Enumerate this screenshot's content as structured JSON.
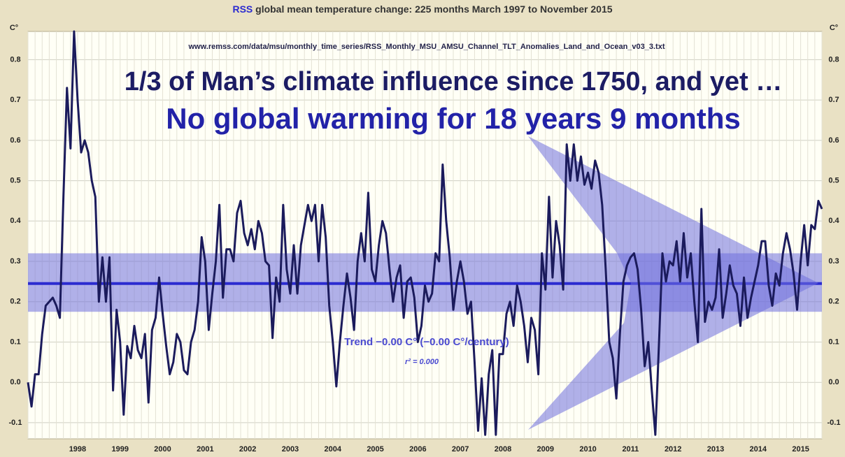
{
  "chart_data": {
    "type": "line",
    "title_prefix": "RSS",
    "title": "global mean temperature change: 225 months March 1997 to November 2015",
    "source": "www.remss.com/data/msu/monthly_time_series/RSS_Monthly_MSU_AMSU_Channel_TLT_Anomalies_Land_and_Ocean_v03_3.txt",
    "headline": "1/3 of Man’s climate influence since 1750, and yet …",
    "subheadline": "No global warming for 18 years 9 months",
    "trend_label": "Trend −0.00 C° (−0.00 C°/century)",
    "r2_label": "r² = 0.000",
    "y_label": "C°",
    "color": "#1b1b5c",
    "trend_color": "#2b2bd0",
    "band_color": "#7070dd",
    "trend": 0.245,
    "band": [
      0.175,
      0.32
    ],
    "ylim": [
      -0.14,
      0.87
    ],
    "yticks": [
      -0.1,
      {
        "value": 0,
        "label": "0.0"
      },
      0.1,
      0.2,
      0.3,
      0.4,
      0.5,
      0.6,
      0.7,
      0.8
    ],
    "grid": true,
    "categories": [
      null,
      null,
      null,
      null,
      null,
      null,
      null,
      null,
      null,
      null,
      null,
      null,
      null,
      null,
      "1998",
      null,
      null,
      null,
      null,
      null,
      null,
      null,
      null,
      null,
      null,
      null,
      "1999",
      null,
      null,
      null,
      null,
      null,
      null,
      null,
      null,
      null,
      null,
      null,
      "2000",
      null,
      null,
      null,
      null,
      null,
      null,
      null,
      null,
      null,
      null,
      null,
      "2001",
      null,
      null,
      null,
      null,
      null,
      null,
      null,
      null,
      null,
      null,
      null,
      "2002",
      null,
      null,
      null,
      null,
      null,
      null,
      null,
      null,
      null,
      null,
      null,
      "2003",
      null,
      null,
      null,
      null,
      null,
      null,
      null,
      null,
      null,
      null,
      null,
      "2004",
      null,
      null,
      null,
      null,
      null,
      null,
      null,
      null,
      null,
      null,
      null,
      "2005",
      null,
      null,
      null,
      null,
      null,
      null,
      null,
      null,
      null,
      null,
      null,
      "2006",
      null,
      null,
      null,
      null,
      null,
      null,
      null,
      null,
      null,
      null,
      null,
      "2007",
      null,
      null,
      null,
      null,
      null,
      null,
      null,
      null,
      null,
      null,
      null,
      "2008",
      null,
      null,
      null,
      null,
      null,
      null,
      null,
      null,
      null,
      null,
      null,
      "2009",
      null,
      null,
      null,
      null,
      null,
      null,
      null,
      null,
      null,
      null,
      null,
      "2010",
      null,
      null,
      null,
      null,
      null,
      null,
      null,
      null,
      null,
      null,
      null,
      "2011",
      null,
      null,
      null,
      null,
      null,
      null,
      null,
      null,
      null,
      null,
      null,
      "2012",
      null,
      null,
      null,
      null,
      null,
      null,
      null,
      null,
      null,
      null,
      null,
      "2013",
      null,
      null,
      null,
      null,
      null,
      null,
      null,
      null,
      null,
      null,
      null,
      "2014",
      null,
      null,
      null,
      null,
      null,
      null,
      null,
      null,
      null,
      null,
      null,
      "2015",
      null,
      null,
      null,
      null,
      null,
      null
    ],
    "values": [
      0.0,
      -0.06,
      0.02,
      0.02,
      0.12,
      0.19,
      0.2,
      0.21,
      0.19,
      0.16,
      0.46,
      0.73,
      0.58,
      0.87,
      0.7,
      0.57,
      0.6,
      0.57,
      0.5,
      0.46,
      0.2,
      0.31,
      0.2,
      0.31,
      -0.02,
      0.18,
      0.1,
      -0.08,
      0.09,
      0.06,
      0.14,
      0.08,
      0.06,
      0.12,
      -0.05,
      0.13,
      0.16,
      0.26,
      0.17,
      0.09,
      0.02,
      0.05,
      0.12,
      0.1,
      0.03,
      0.02,
      0.1,
      0.13,
      0.2,
      0.36,
      0.3,
      0.13,
      0.22,
      0.3,
      0.44,
      0.21,
      0.33,
      0.33,
      0.3,
      0.42,
      0.45,
      0.37,
      0.34,
      0.38,
      0.33,
      0.4,
      0.37,
      0.3,
      0.29,
      0.11,
      0.26,
      0.2,
      0.44,
      0.28,
      0.22,
      0.34,
      0.22,
      0.34,
      0.39,
      0.44,
      0.4,
      0.44,
      0.3,
      0.44,
      0.36,
      0.19,
      0.1,
      -0.01,
      0.1,
      0.19,
      0.27,
      0.21,
      0.13,
      0.3,
      0.37,
      0.3,
      0.47,
      0.28,
      0.25,
      0.34,
      0.4,
      0.37,
      0.28,
      0.2,
      0.26,
      0.29,
      0.16,
      0.25,
      0.26,
      0.21,
      0.1,
      0.14,
      0.24,
      0.2,
      0.22,
      0.32,
      0.3,
      0.54,
      0.4,
      0.31,
      0.18,
      0.25,
      0.3,
      0.25,
      0.17,
      0.2,
      0.05,
      -0.12,
      0.01,
      -0.13,
      0.02,
      0.08,
      -0.13,
      0.07,
      0.07,
      0.17,
      0.2,
      0.14,
      0.24,
      0.2,
      0.14,
      0.05,
      0.16,
      0.13,
      0.02,
      0.32,
      0.23,
      0.46,
      0.26,
      0.4,
      0.34,
      0.23,
      0.59,
      0.5,
      0.59,
      0.5,
      0.56,
      0.49,
      0.52,
      0.48,
      0.55,
      0.52,
      0.44,
      0.28,
      0.1,
      0.06,
      -0.04,
      0.12,
      0.25,
      0.29,
      0.31,
      0.32,
      0.28,
      0.18,
      0.04,
      0.1,
      -0.02,
      -0.13,
      0.09,
      0.32,
      0.25,
      0.3,
      0.29,
      0.35,
      0.25,
      0.37,
      0.26,
      0.32,
      0.2,
      0.1,
      0.43,
      0.15,
      0.2,
      0.18,
      0.21,
      0.33,
      0.16,
      0.22,
      0.29,
      0.24,
      0.22,
      0.14,
      0.26,
      0.16,
      0.21,
      0.25,
      0.29,
      0.35,
      0.35,
      0.24,
      0.19,
      0.27,
      0.24,
      0.32,
      0.37,
      0.33,
      0.27,
      0.18,
      0.3,
      0.39,
      0.29,
      0.39,
      0.38,
      0.45,
      0.43
    ]
  }
}
